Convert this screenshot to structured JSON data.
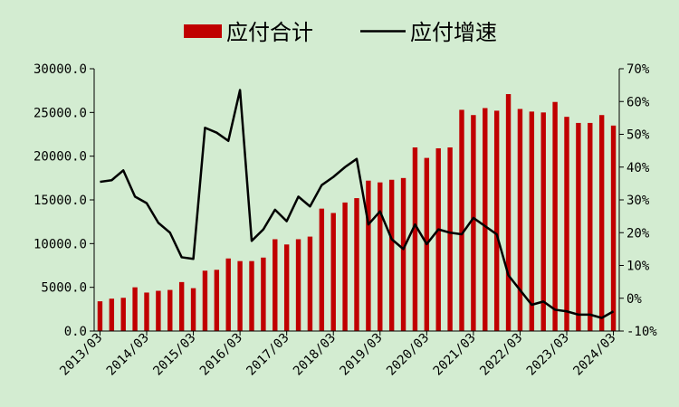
{
  "chart_data": {
    "type": "bar+line",
    "legend": {
      "placement": "top-center",
      "bar_label": "应付合计",
      "line_label": "应付增速"
    },
    "x_tick_labels": [
      "2013/03",
      "2014/03",
      "2015/03",
      "2016/03",
      "2017/03",
      "2018/03",
      "2019/03",
      "2020/03",
      "2021/03",
      "2022/03",
      "2023/03",
      "2024/03"
    ],
    "y_left": {
      "min": 0,
      "max": 30000,
      "step": 5000,
      "tick_labels": [
        "0.0",
        "5000.0",
        "10000.0",
        "15000.0",
        "20000.0",
        "25000.0",
        "30000.0"
      ]
    },
    "y_right": {
      "min": -10,
      "max": 70,
      "step": 10,
      "tick_labels": [
        "-10%",
        "0%",
        "10%",
        "20%",
        "30%",
        "40%",
        "50%",
        "60%",
        "70%"
      ]
    },
    "grid": false,
    "bar_color": "#c00000",
    "line_color": "#000000",
    "bar_values": [
      3400,
      3700,
      3800,
      5000,
      4400,
      4600,
      4700,
      5600,
      4900,
      6900,
      7000,
      8300,
      8000,
      8000,
      8400,
      10500,
      9900,
      10500,
      10800,
      14000,
      13500,
      14700,
      15200,
      17200,
      17000,
      17300,
      17500,
      21000,
      19800,
      20900,
      21000,
      25300,
      24700,
      25500,
      25200,
      27100,
      25400,
      25100,
      25000,
      26200,
      24500,
      23800,
      23800,
      24700,
      23500
    ],
    "line_values": [
      35.5,
      36,
      39,
      31,
      29,
      23,
      20,
      12.5,
      12,
      52,
      50.5,
      48,
      63.5,
      17.5,
      21,
      27,
      23.5,
      31,
      28,
      34.5,
      37,
      40,
      42.5,
      22.5,
      26.5,
      18,
      15,
      22.5,
      16.5,
      21,
      20,
      19.5,
      24.5,
      22,
      19.5,
      7,
      2.5,
      -2,
      -1,
      -3.5,
      -4,
      -5,
      -5,
      -6,
      -4
    ]
  }
}
